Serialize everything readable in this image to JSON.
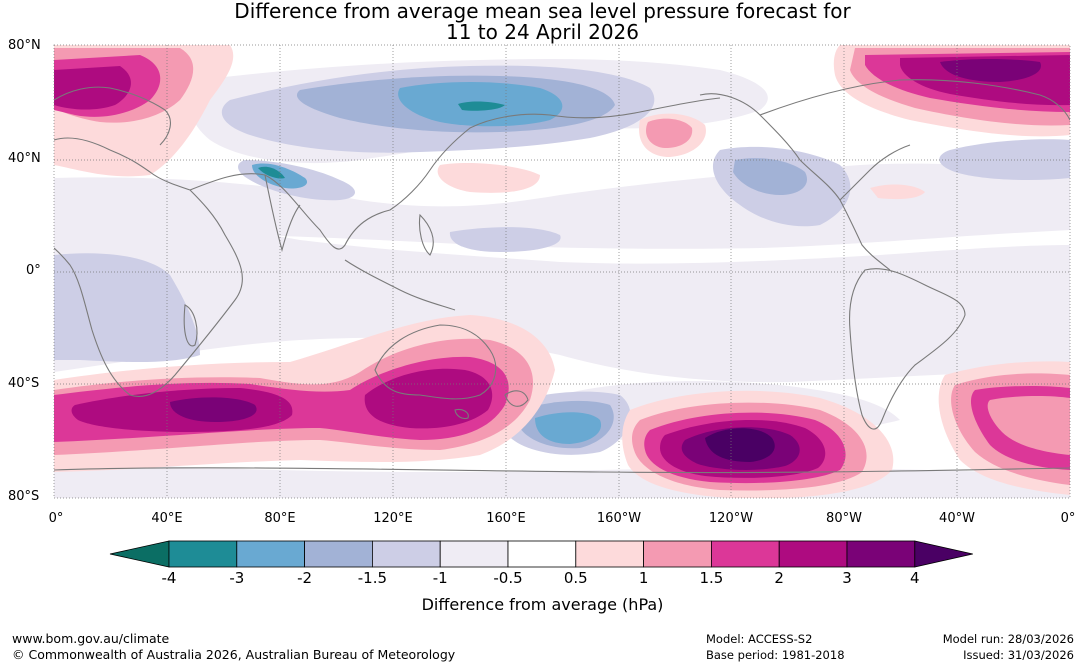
{
  "title": {
    "line1": "Difference from average mean sea level pressure forecast for",
    "line2": "11 to 24 April 2026"
  },
  "map": {
    "lat_labels": [
      "80°N",
      "40°N",
      "0°",
      "40°S",
      "80°S"
    ],
    "lon_labels": [
      "0°",
      "40°E",
      "80°E",
      "120°E",
      "160°E",
      "160°W",
      "120°W",
      "80°W",
      "40°W",
      "0°"
    ]
  },
  "colorbar": {
    "title": "Difference from average (hPa)",
    "tick_labels": [
      "-4",
      "-3",
      "-2",
      "-1.5",
      "-1",
      "-0.5",
      "0.5",
      "1",
      "1.5",
      "2",
      "3",
      "4"
    ],
    "colors": [
      "#0b6e64",
      "#1e8c96",
      "#69a9d2",
      "#a2b2d6",
      "#cdcee6",
      "#efecf4",
      "#ffffff",
      "#fddadb",
      "#f49ab2",
      "#dc3798",
      "#ae0b80",
      "#7a0277",
      "#4a0064"
    ]
  },
  "footer": {
    "website": "www.bom.gov.au/climate",
    "copyright": "© Commonwealth of Australia 2026, Australian Bureau of Meteorology",
    "model": "Model: ACCESS-S2",
    "base_period": "Base period: 1981-2018",
    "model_run": "Model run: 28/03/2026",
    "issued": "Issued: 31/03/2026"
  }
}
